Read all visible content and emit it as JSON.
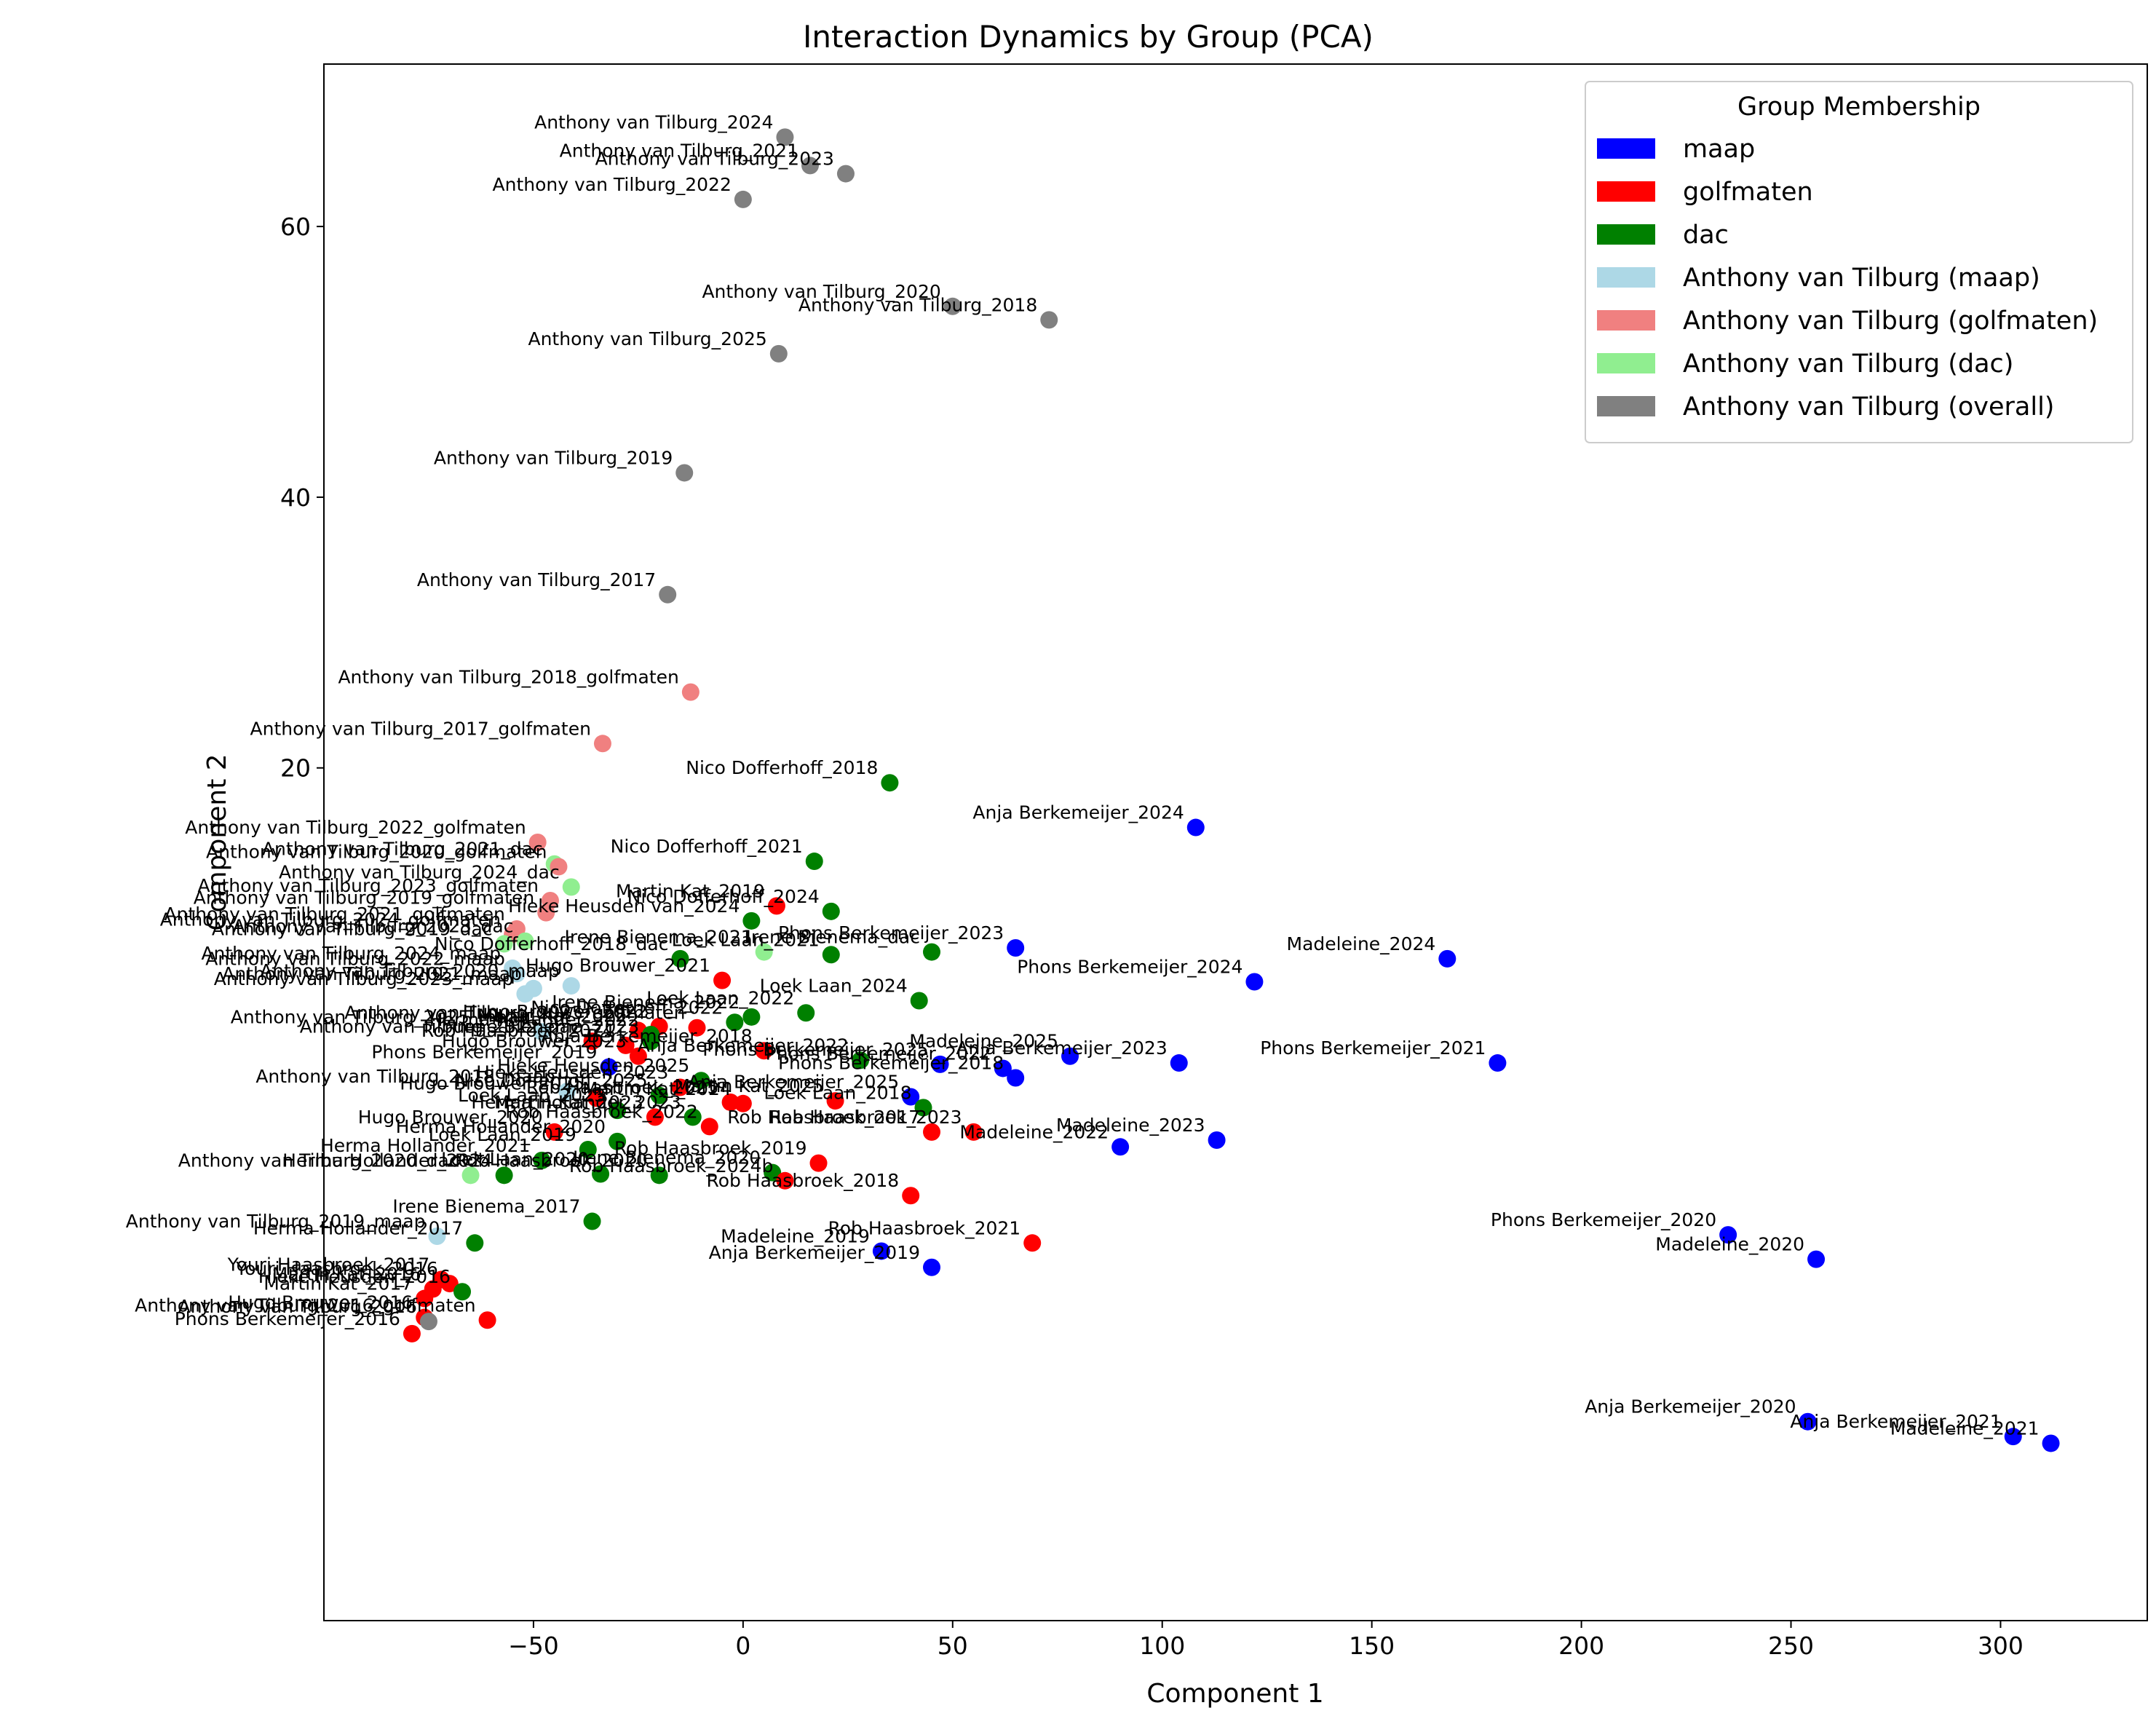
{
  "chart_data": {
    "type": "scatter",
    "title": "Interaction Dynamics by Group (PCA)",
    "xlabel": "Component 1",
    "ylabel": "Component 2",
    "xlim": [
      -100,
      335
    ],
    "ylim": [
      -43,
      72
    ],
    "xticks": [
      -50,
      0,
      50,
      100,
      150,
      200,
      250,
      300
    ],
    "xtick_labels": [
      "−50",
      "0",
      "50",
      "100",
      "150",
      "200",
      "250",
      "300"
    ],
    "yticks": [
      20,
      40,
      60
    ],
    "ytick_labels": [
      "20",
      "40",
      "60"
    ],
    "grid": false,
    "legend": {
      "title": "Group Membership",
      "position": "top-right",
      "entries": [
        {
          "label": "maap",
          "color": "#0000ff"
        },
        {
          "label": "golfmaten",
          "color": "#ff0000"
        },
        {
          "label": "dac",
          "color": "#008000"
        },
        {
          "label": "Anthony van Tilburg (maap)",
          "color": "#add8e6"
        },
        {
          "label": "Anthony van Tilburg (golfmaten)",
          "color": "#f08080"
        },
        {
          "label": "Anthony van Tilburg (dac)",
          "color": "#90ee90"
        },
        {
          "label": "Anthony van Tilburg (overall)",
          "color": "#808080"
        }
      ]
    },
    "points": [
      {
        "label": "Anthony van Tilburg_2024",
        "x": 10,
        "y": 66.6,
        "color": "#808080"
      },
      {
        "label": "Anthony van Tilburg_2021",
        "x": 16,
        "y": 64.5,
        "color": "#808080"
      },
      {
        "label": "Anthony van Tilburg_2023",
        "x": 24.5,
        "y": 63.9,
        "color": "#808080"
      },
      {
        "label": "Anthony van Tilburg_2022",
        "x": 0,
        "y": 62,
        "color": "#808080"
      },
      {
        "label": "Anthony van Tilburg_2020",
        "x": 50,
        "y": 54.1,
        "color": "#808080"
      },
      {
        "label": "Anthony van Tilburg_2018",
        "x": 73,
        "y": 53.1,
        "color": "#808080"
      },
      {
        "label": "Anthony van Tilburg_2025",
        "x": 8.5,
        "y": 50.6,
        "color": "#808080"
      },
      {
        "label": "Anthony van Tilburg_2019",
        "x": -14,
        "y": 41.8,
        "color": "#808080"
      },
      {
        "label": "Anthony van Tilburg_2017",
        "x": -18,
        "y": 32.8,
        "color": "#808080"
      },
      {
        "label": "Anthony van Tilburg_2018_golfmaten",
        "x": -12.5,
        "y": 25.6,
        "color": "#f08080"
      },
      {
        "label": "Anthony van Tilburg_2017_golfmaten",
        "x": -33.5,
        "y": 21.8,
        "color": "#f08080"
      },
      {
        "label": "Nico Dofferhoff_2018",
        "x": 35,
        "y": 18.9,
        "color": "#008000"
      },
      {
        "label": "Anja Berkemeijer_2024",
        "x": 108,
        "y": 15.6,
        "color": "#0000ff"
      },
      {
        "label": "Anthony van Tilburg_2022_golfmaten",
        "x": -49,
        "y": 14.5,
        "color": "#f08080"
      },
      {
        "label": "Anthony van Tilburg_2021_dac",
        "x": -45,
        "y": 12.9,
        "color": "#90ee90"
      },
      {
        "label": "Anthony van Tilburg_2020_golfmaten",
        "x": -44,
        "y": 12.7,
        "color": "#f08080"
      },
      {
        "label": "Nico Dofferhoff_2021",
        "x": 17,
        "y": 13.1,
        "color": "#008000"
      },
      {
        "label": "Anthony van Tilburg_2024_dac",
        "x": -41,
        "y": 11.2,
        "color": "#90ee90"
      },
      {
        "label": "Martin Kat_2019",
        "x": 8,
        "y": 9.8,
        "color": "#ff0000"
      },
      {
        "label": "Nico Dofferhoff_2024",
        "x": 21,
        "y": 9.4,
        "color": "#008000"
      },
      {
        "label": "Anthony van Tilburg_2023_golfmaten",
        "x": -46,
        "y": 10.2,
        "color": "#f08080"
      },
      {
        "label": "Anthony van Tilburg_2019_golfmaten",
        "x": -47,
        "y": 9.3,
        "color": "#f08080"
      },
      {
        "label": "Hieke Heusden van_2024",
        "x": 2,
        "y": 8.7,
        "color": "#008000"
      },
      {
        "label": "Anthony van Tilburg_2021_golfmaten",
        "x": -54,
        "y": 8.1,
        "color": "#f08080"
      },
      {
        "label": "Anthony van Tilburg_2024_golfmaten",
        "x": -55,
        "y": 7.7,
        "color": "#f08080"
      },
      {
        "label": "Anthony van Tilburg_2023_dac",
        "x": -52,
        "y": 7.2,
        "color": "#90ee90"
      },
      {
        "label": "Anthony van Tilburg_2019_dac",
        "x": -57,
        "y": 7.0,
        "color": "#90ee90"
      },
      {
        "label": "Irene Bienema_2021",
        "x": 5,
        "y": 6.4,
        "color": "#90ee90"
      },
      {
        "label": "Phons Berkemeijer_2023",
        "x": 65,
        "y": 6.7,
        "color": "#0000ff"
      },
      {
        "label": "Nico Dofferhoff_2018_dac",
        "x": -15,
        "y": 5.9,
        "color": "#008000"
      },
      {
        "label": "Loek Laan_2021",
        "x": 21,
        "y": 6.2,
        "color": "#008000"
      },
      {
        "label": "Irene Bienema_dac",
        "x": 45,
        "y": 6.4,
        "color": "#008000"
      },
      {
        "label": "Madeleine_2024",
        "x": 168,
        "y": 5.9,
        "color": "#0000ff"
      },
      {
        "label": "Anthony van Tilburg_2024_maap",
        "x": -55,
        "y": 5.2,
        "color": "#add8e6"
      },
      {
        "label": "Anthony van Tilburg_2022_maap",
        "x": -54,
        "y": 4.8,
        "color": "#add8e6"
      },
      {
        "label": "Hugo Brouwer_2021",
        "x": -5,
        "y": 4.3,
        "color": "#ff0000"
      },
      {
        "label": "Anthony van Tilburg_2021_maap",
        "x": -50,
        "y": 3.7,
        "color": "#add8e6"
      },
      {
        "label": "Anthony van Tilburg_2023_maap",
        "x": -52,
        "y": 3.3,
        "color": "#add8e6"
      },
      {
        "label": "Anthony van Tilburg_2020_maap",
        "x": -41,
        "y": 3.9,
        "color": "#add8e6"
      },
      {
        "label": "Phons Berkemeijer_2024",
        "x": 122,
        "y": 4.2,
        "color": "#0000ff"
      },
      {
        "label": "Loek Laan_2024",
        "x": 42,
        "y": 2.8,
        "color": "#008000"
      },
      {
        "label": "Loek Laan_2022",
        "x": 15,
        "y": 1.9,
        "color": "#008000"
      },
      {
        "label": "Nico Dofferhoff_2022",
        "x": -2,
        "y": 1.2,
        "color": "#008000"
      },
      {
        "label": "Irene Bienema_2022",
        "x": 2,
        "y": 1.6,
        "color": "#008000"
      },
      {
        "label": "Anthony van Tilburg_2025_golfmaten",
        "x": -11,
        "y": 0.8,
        "color": "#ff0000"
      },
      {
        "label": "Hugo Brouwer_2022",
        "x": -20,
        "y": 0.9,
        "color": "#ff0000"
      },
      {
        "label": "Anthony van Tilburg_2025_maap",
        "x": -48,
        "y": 0.5,
        "color": "#add8e6"
      },
      {
        "label": "Martin Kat_2022",
        "x": -25,
        "y": 0.6,
        "color": "#ff0000"
      },
      {
        "label": "Herma Hollander_2022",
        "x": -22,
        "y": 0.3,
        "color": "#008000"
      },
      {
        "label": "Anthony van Tilburg_2022_dac",
        "x": -36,
        "y": -0.2,
        "color": "#ff0000"
      },
      {
        "label": "Rob Haasbroek_2024",
        "x": -28,
        "y": -0.5,
        "color": "#ff0000"
      },
      {
        "label": "Irene Bienema_2023",
        "x": -22,
        "y": -0.2,
        "color": "#008000"
      },
      {
        "label": "Anja Berkemeijer_2018",
        "x": 5,
        "y": -0.9,
        "color": "#ff0000"
      },
      {
        "label": "Hugo Brouwer_2023",
        "x": -25,
        "y": -1.3,
        "color": "#ff0000"
      },
      {
        "label": "Anja Berkemeijer_2022",
        "x": 28,
        "y": -1.6,
        "color": "#008000"
      },
      {
        "label": "Madeleine_2025",
        "x": 78,
        "y": -1.3,
        "color": "#0000ff"
      },
      {
        "label": "Phons Berkemeijer_2025",
        "x": 47,
        "y": -1.9,
        "color": "#0000ff"
      },
      {
        "label": "Anja Berkemeijer_2023",
        "x": 104,
        "y": -1.8,
        "color": "#0000ff"
      },
      {
        "label": "Phons Berkemeijer_2021",
        "x": 180,
        "y": -1.8,
        "color": "#0000ff"
      },
      {
        "label": "Phons Berkemeijer_2019",
        "x": -32,
        "y": -2.1,
        "color": "#0000ff"
      },
      {
        "label": "Phons Berkemeijer_2022",
        "x": 62,
        "y": -2.2,
        "color": "#0000ff"
      },
      {
        "label": "Phons Berkemeijer_2018",
        "x": 65,
        "y": -2.9,
        "color": "#0000ff"
      },
      {
        "label": "Hieke Heusden_2025",
        "x": -10,
        "y": -3.1,
        "color": "#008000"
      },
      {
        "label": "Hieke Heusden_2023",
        "x": -15,
        "y": -3.6,
        "color": "#ff0000"
      },
      {
        "label": "Anthony van Tilburg_2018_maap",
        "x": -42,
        "y": -3.9,
        "color": "#add8e6"
      },
      {
        "label": "Nico Dofferhoff_2025",
        "x": -20,
        "y": -4.2,
        "color": "#008000"
      },
      {
        "label": "Hugo Brouwer_2025",
        "x": -35,
        "y": -4.4,
        "color": "#ff0000"
      },
      {
        "label": "Anja Berkemeijer_2025",
        "x": 40,
        "y": -4.3,
        "color": "#0000ff"
      },
      {
        "label": "Martin Kat_2025",
        "x": 22,
        "y": -4.6,
        "color": "#ff0000"
      },
      {
        "label": "Rob Haasbroek_2025",
        "x": -3,
        "y": -4.7,
        "color": "#ff0000"
      },
      {
        "label": "Loek Laan_2018",
        "x": 43,
        "y": -5.1,
        "color": "#008000"
      },
      {
        "label": "Loek Laan_2023",
        "x": -30,
        "y": -5.3,
        "color": "#008000"
      },
      {
        "label": "Martin Kat_2023",
        "x": -21,
        "y": -5.8,
        "color": "#ff0000"
      },
      {
        "label": "Martin Kat_2024",
        "x": 0,
        "y": -4.8,
        "color": "#ff0000"
      },
      {
        "label": "Herma Hollander_2023",
        "x": -12,
        "y": -5.8,
        "color": "#008000"
      },
      {
        "label": "Rob Haasbroek_2022",
        "x": -8,
        "y": -6.5,
        "color": "#ff0000"
      },
      {
        "label": "Rob Haasbroek_2017",
        "x": 45,
        "y": -6.9,
        "color": "#ff0000"
      },
      {
        "label": "Rob Haasbroek_2023",
        "x": 55,
        "y": -6.9,
        "color": "#ff0000"
      },
      {
        "label": "Madeleine_2022",
        "x": 90,
        "y": -8.0,
        "color": "#0000ff"
      },
      {
        "label": "Madeleine_2023",
        "x": 113,
        "y": -7.5,
        "color": "#0000ff"
      },
      {
        "label": "Hugo Brouwer_2020",
        "x": -45,
        "y": -6.9,
        "color": "#ff0000"
      },
      {
        "label": "Herma Hollander_2020",
        "x": -30,
        "y": -7.6,
        "color": "#008000"
      },
      {
        "label": "Loek Laan_2019",
        "x": -37,
        "y": -8.2,
        "color": "#008000"
      },
      {
        "label": "Herma Hollander_2021",
        "x": -48,
        "y": -9.0,
        "color": "#008000"
      },
      {
        "label": "Rob Haasbroek_2019",
        "x": 18,
        "y": -9.2,
        "color": "#ff0000"
      },
      {
        "label": "Anthony van Tilburg_2020_dac",
        "x": -65,
        "y": -10.1,
        "color": "#90ee90"
      },
      {
        "label": "Herma Hollander_2024",
        "x": -57,
        "y": -10.1,
        "color": "#008000"
      },
      {
        "label": "Loek Laan_2020",
        "x": -34,
        "y": -10.0,
        "color": "#008000"
      },
      {
        "label": "Irene Bienema_2020",
        "x": 7,
        "y": -9.9,
        "color": "#008000"
      },
      {
        "label": "Rob Haasbroek_2020",
        "x": -20,
        "y": -10.1,
        "color": "#008000"
      },
      {
        "label": "Rob Haasbroek_2024b",
        "x": 10,
        "y": -10.5,
        "color": "#ff0000"
      },
      {
        "label": "Rob Haasbroek_2018",
        "x": 40,
        "y": -11.6,
        "color": "#ff0000"
      },
      {
        "label": "Irene Bienema_2017",
        "x": -36,
        "y": -13.5,
        "color": "#008000"
      },
      {
        "label": "Anthony van Tilburg_2019_maap",
        "x": -73,
        "y": -14.6,
        "color": "#add8e6"
      },
      {
        "label": "Herma Hollander_2017",
        "x": -64,
        "y": -15.1,
        "color": "#008000"
      },
      {
        "label": "Phons Berkemeijer_2020",
        "x": 235,
        "y": -14.5,
        "color": "#0000ff"
      },
      {
        "label": "Rob Haasbroek_2021",
        "x": 69,
        "y": -15.1,
        "color": "#ff0000"
      },
      {
        "label": "Madeleine_2019",
        "x": 33,
        "y": -15.7,
        "color": "#0000ff"
      },
      {
        "label": "Madeleine_2020",
        "x": 256,
        "y": -16.3,
        "color": "#0000ff"
      },
      {
        "label": "Anja Berkemeijer_2019",
        "x": 45,
        "y": -16.9,
        "color": "#0000ff"
      },
      {
        "label": "Youri Haasbroek_2017",
        "x": -72,
        "y": -17.8,
        "color": "#ff0000"
      },
      {
        "label": "Youri Haasbroek_2016",
        "x": -70,
        "y": -18.1,
        "color": "#ff0000"
      },
      {
        "label": "Martin Kat_2016",
        "x": -74,
        "y": -18.5,
        "color": "#ff0000"
      },
      {
        "label": "Hieke Heusden_2016",
        "x": -67,
        "y": -18.7,
        "color": "#008000"
      },
      {
        "label": "Martin Kat_2017",
        "x": -76,
        "y": -19.2,
        "color": "#ff0000"
      },
      {
        "label": "Hugo Brouwer_2016",
        "x": -76,
        "y": -20.6,
        "color": "#ff0000"
      },
      {
        "label": "Anthony van Tilburg_2016",
        "x": -75,
        "y": -20.9,
        "color": "#808080"
      },
      {
        "label": "Anthony van Tilburg_2016_golfmaten",
        "x": -61,
        "y": -20.8,
        "color": "#ff0000"
      },
      {
        "label": "Phons Berkemeijer_2016",
        "x": -79,
        "y": -21.8,
        "color": "#ff0000"
      },
      {
        "label": "Anja Berkemeijer_2020",
        "x": 254,
        "y": -28.3,
        "color": "#0000ff"
      },
      {
        "label": "Anja Berkemeijer_2021",
        "x": 303,
        "y": -29.4,
        "color": "#0000ff"
      },
      {
        "label": "Madeleine_2021",
        "x": 312,
        "y": -29.9,
        "color": "#0000ff"
      }
    ]
  }
}
